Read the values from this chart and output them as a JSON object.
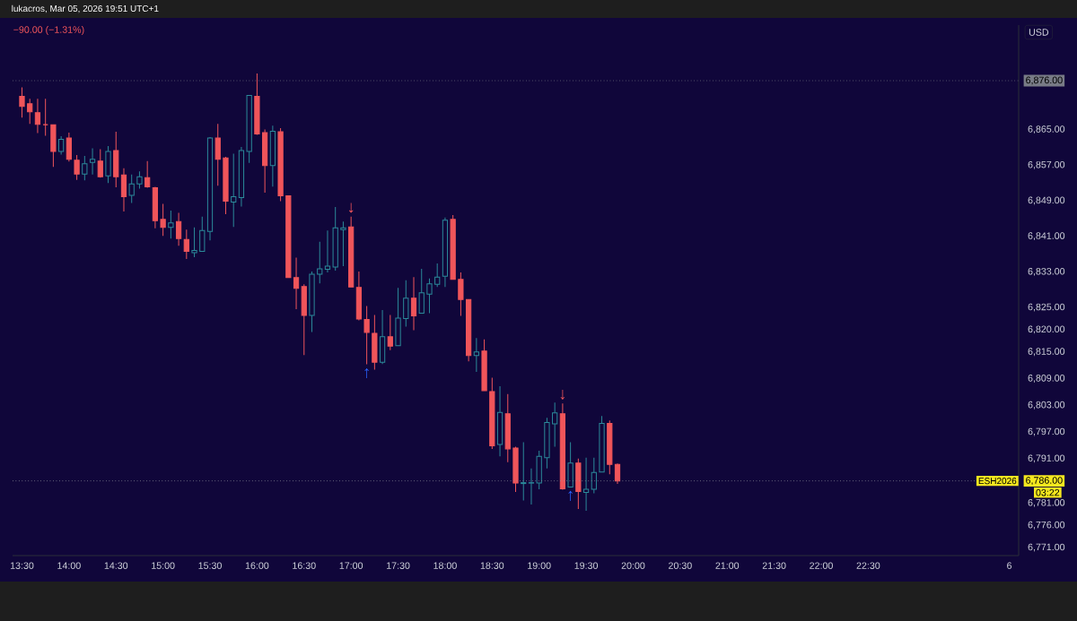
{
  "chart_data": {
    "type": "candlestick",
    "title": "lukacros, Mar 05, 2026 19:51 UTC+1",
    "x": [
      "2026-03-05T13:30",
      "2026-03-05T13:35",
      "2026-03-05T13:40",
      "2026-03-05T13:45",
      "2026-03-05T13:50",
      "2026-03-05T13:55",
      "2026-03-05T14:00",
      "2026-03-05T14:05",
      "2026-03-05T14:10",
      "2026-03-05T14:15",
      "2026-03-05T14:20",
      "2026-03-05T14:25",
      "2026-03-05T14:30",
      "2026-03-05T14:35",
      "2026-03-05T14:40",
      "2026-03-05T14:45",
      "2026-03-05T14:50",
      "2026-03-05T14:55",
      "2026-03-05T15:00",
      "2026-03-05T15:05",
      "2026-03-05T15:10",
      "2026-03-05T15:15",
      "2026-03-05T15:20",
      "2026-03-05T15:25",
      "2026-03-05T15:30",
      "2026-03-05T15:35",
      "2026-03-05T15:40",
      "2026-03-05T15:45",
      "2026-03-05T15:50",
      "2026-03-05T15:55",
      "2026-03-05T16:00",
      "2026-03-05T16:05",
      "2026-03-05T16:10",
      "2026-03-05T16:15",
      "2026-03-05T16:20",
      "2026-03-05T16:25",
      "2026-03-05T16:30",
      "2026-03-05T16:35",
      "2026-03-05T16:40",
      "2026-03-05T16:45",
      "2026-03-05T16:50",
      "2026-03-05T16:55",
      "2026-03-05T17:00",
      "2026-03-05T17:05",
      "2026-03-05T17:10",
      "2026-03-05T17:15",
      "2026-03-05T17:20",
      "2026-03-05T17:25",
      "2026-03-05T17:30",
      "2026-03-05T17:35",
      "2026-03-05T17:40",
      "2026-03-05T17:45",
      "2026-03-05T17:50",
      "2026-03-05T17:55",
      "2026-03-05T18:00",
      "2026-03-05T18:05",
      "2026-03-05T18:10",
      "2026-03-05T18:15",
      "2026-03-05T18:20",
      "2026-03-05T18:25",
      "2026-03-05T18:30",
      "2026-03-05T18:35",
      "2026-03-05T18:40",
      "2026-03-05T18:45",
      "2026-03-05T18:50",
      "2026-03-05T18:55",
      "2026-03-05T19:00",
      "2026-03-05T19:05",
      "2026-03-05T19:10",
      "2026-03-05T19:15",
      "2026-03-05T19:20",
      "2026-03-05T19:25",
      "2026-03-05T19:30",
      "2026-03-05T19:35",
      "2026-03-05T19:40",
      "2026-03-05T19:45",
      "2026-03-05T19:50"
    ],
    "ohlc": [
      [
        6872.5,
        6874.5,
        6867.7,
        6870.2
      ],
      [
        6870.8,
        6871.9,
        6866.3,
        6869.0
      ],
      [
        6868.8,
        6871.9,
        6864.2,
        6866.2
      ],
      [
        6866.1,
        6871.9,
        6863.6,
        6866.1
      ],
      [
        6866.1,
        6866.1,
        6856.6,
        6860.1
      ],
      [
        6860.1,
        6863.5,
        6859.4,
        6862.8
      ],
      [
        6863.1,
        6864.3,
        6857.8,
        6858.3
      ],
      [
        6858.1,
        6859.3,
        6853.7,
        6855.0
      ],
      [
        6855.0,
        6859.1,
        6853.6,
        6857.3
      ],
      [
        6857.6,
        6860.8,
        6854.9,
        6858.3
      ],
      [
        6857.9,
        6860.6,
        6854.2,
        6854.4
      ],
      [
        6854.6,
        6861.3,
        6853.0,
        6860.1
      ],
      [
        6860.3,
        6864.5,
        6852.0,
        6854.4
      ],
      [
        6854.8,
        6856.3,
        6846.6,
        6849.9
      ],
      [
        6850.2,
        6854.9,
        6848.5,
        6852.8
      ],
      [
        6852.8,
        6855.6,
        6851.7,
        6854.4
      ],
      [
        6854.2,
        6857.9,
        6851.9,
        6852.1
      ],
      [
        6851.9,
        6852.1,
        6842.8,
        6844.5
      ],
      [
        6844.8,
        6848.3,
        6841.1,
        6843.0
      ],
      [
        6843.0,
        6846.8,
        6840.5,
        6844.0
      ],
      [
        6844.3,
        6846.3,
        6838.9,
        6840.5
      ],
      [
        6840.3,
        6842.5,
        6835.9,
        6837.6
      ],
      [
        6837.3,
        6843.0,
        6836.3,
        6837.8
      ],
      [
        6837.6,
        6845.4,
        6837.6,
        6842.3
      ],
      [
        6842.1,
        6863.3,
        6840.1,
        6863.1
      ],
      [
        6863.1,
        6866.3,
        6852.4,
        6858.3
      ],
      [
        6858.6,
        6858.9,
        6846.0,
        6848.9
      ],
      [
        6848.7,
        6859.6,
        6843.1,
        6849.9
      ],
      [
        6849.7,
        6861.1,
        6847.7,
        6860.3
      ],
      [
        6860.1,
        6872.8,
        6857.5,
        6872.7
      ],
      [
        6872.5,
        6877.6,
        6863.8,
        6864.0
      ],
      [
        6864.3,
        6865.0,
        6850.8,
        6856.9
      ],
      [
        6856.9,
        6865.9,
        6852.2,
        6864.6
      ],
      [
        6864.5,
        6865.3,
        6848.9,
        6850.1
      ],
      [
        6850.1,
        6850.2,
        6831.7,
        6831.7
      ],
      [
        6831.7,
        6836.2,
        6824.6,
        6829.3
      ],
      [
        6829.7,
        6830.2,
        6814.3,
        6823.2
      ],
      [
        6823.2,
        6833.1,
        6819.5,
        6832.5
      ],
      [
        6832.5,
        6839.8,
        6830.4,
        6833.7
      ],
      [
        6833.6,
        6842.3,
        6832.9,
        6834.3
      ],
      [
        6834.1,
        6847.6,
        6833.3,
        6842.9
      ],
      [
        6842.5,
        6844.3,
        6834.3,
        6842.9
      ],
      [
        6843.1,
        6845.4,
        6829.6,
        6829.6
      ],
      [
        6829.5,
        6833.1,
        6822.1,
        6822.4
      ],
      [
        6822.3,
        6825.3,
        6812.2,
        6819.4
      ],
      [
        6819.2,
        6823.3,
        6811.0,
        6812.7
      ],
      [
        6812.7,
        6824.4,
        6812.3,
        6818.4
      ],
      [
        6818.4,
        6823.3,
        6815.4,
        6816.3
      ],
      [
        6816.4,
        6829.4,
        6816.4,
        6822.6
      ],
      [
        6822.5,
        6831.1,
        6820.7,
        6827.1
      ],
      [
        6827.1,
        6831.8,
        6819.9,
        6823.1
      ],
      [
        6823.7,
        6833.7,
        6823.7,
        6828.3
      ],
      [
        6828.0,
        6831.5,
        6823.7,
        6830.3
      ],
      [
        6830.2,
        6834.9,
        6829.6,
        6831.8
      ],
      [
        6832.0,
        6845.2,
        6829.6,
        6844.6
      ],
      [
        6844.8,
        6845.8,
        6831.3,
        6831.3
      ],
      [
        6831.3,
        6832.9,
        6823.1,
        6826.8
      ],
      [
        6826.8,
        6826.8,
        6812.9,
        6814.2
      ],
      [
        6814.2,
        6818.1,
        6810.5,
        6815.0
      ],
      [
        6815.2,
        6817.8,
        6806.3,
        6806.3
      ],
      [
        6806.1,
        6809.2,
        6793.2,
        6793.9
      ],
      [
        6794.2,
        6807.3,
        6791.5,
        6801.4
      ],
      [
        6801.1,
        6805.5,
        6790.2,
        6793.2
      ],
      [
        6793.4,
        6793.7,
        6783.5,
        6785.5
      ],
      [
        6785.4,
        6794.7,
        6781.6,
        6785.6
      ],
      [
        6785.5,
        6788.8,
        6780.7,
        6785.6
      ],
      [
        6785.5,
        6792.8,
        6784.1,
        6791.5
      ],
      [
        6791.2,
        6800.2,
        6788.8,
        6799.1
      ],
      [
        6798.8,
        6803.6,
        6793.7,
        6801.3
      ],
      [
        6801.1,
        6803.4,
        6784.0,
        6784.2
      ],
      [
        6784.6,
        6794.7,
        6784.6,
        6790.0
      ],
      [
        6790.0,
        6791.0,
        6779.7,
        6783.6
      ],
      [
        6783.4,
        6791.2,
        6779.3,
        6784.1
      ],
      [
        6784.1,
        6791.2,
        6783.2,
        6787.9
      ],
      [
        6788.0,
        6800.6,
        6788.0,
        6798.9
      ],
      [
        6798.9,
        6799.6,
        6787.5,
        6789.7
      ],
      [
        6789.7,
        6789.9,
        6785.3,
        6786.0
      ]
    ],
    "colors": [
      "#f0555a",
      "#f0555a",
      "#f0555a",
      "#f0555a",
      "#f0555a",
      "#2b8a9a",
      "#f0555a",
      "#f0555a",
      "#2b8a9a",
      "#2b8a9a",
      "#f0555a",
      "#2b8a9a",
      "#f0555a",
      "#f0555a",
      "#2b8a9a",
      "#2b8a9a",
      "#f0555a",
      "#f0555a",
      "#f0555a",
      "#2b8a9a",
      "#f0555a",
      "#f0555a",
      "#2b8a9a",
      "#2b8a9a",
      "#2b8a9a",
      "#f0555a",
      "#f0555a",
      "#2b8a9a",
      "#2b8a9a",
      "#2b8a9a",
      "#f0555a",
      "#f0555a",
      "#2b8a9a",
      "#f0555a",
      "#f0555a",
      "#f0555a",
      "#f0555a",
      "#2b8a9a",
      "#2b8a9a",
      "#2b8a9a",
      "#2b8a9a",
      "#2b8a9a",
      "#f0555a",
      "#f0555a",
      "#f0555a",
      "#f0555a",
      "#2b8a9a",
      "#f0555a",
      "#2b8a9a",
      "#2b8a9a",
      "#f0555a",
      "#2b8a9a",
      "#2b8a9a",
      "#2b8a9a",
      "#2b8a9a",
      "#f0555a",
      "#f0555a",
      "#f0555a",
      "#2b8a9a",
      "#f0555a",
      "#f0555a",
      "#2b8a9a",
      "#f0555a",
      "#f0555a",
      "#2b8a9a",
      "#2b8a9a",
      "#2b8a9a",
      "#2b8a9a",
      "#2b8a9a",
      "#f0555a",
      "#2b8a9a",
      "#f0555a",
      "#2b8a9a",
      "#2b8a9a",
      "#2b8a9a",
      "#f0555a",
      "#f0555a"
    ],
    "xlim": [
      "2026-03-05T13:24",
      "2026-03-06T00:06"
    ],
    "xticks": [
      {
        "value": "2026-03-05T13:30",
        "label": "13:30"
      },
      {
        "value": "2026-03-05T14:00",
        "label": "14:00"
      },
      {
        "value": "2026-03-05T14:30",
        "label": "14:30"
      },
      {
        "value": "2026-03-05T15:00",
        "label": "15:00"
      },
      {
        "value": "2026-03-05T15:30",
        "label": "15:30"
      },
      {
        "value": "2026-03-05T16:00",
        "label": "16:00"
      },
      {
        "value": "2026-03-05T16:30",
        "label": "16:30"
      },
      {
        "value": "2026-03-05T17:00",
        "label": "17:00"
      },
      {
        "value": "2026-03-05T17:30",
        "label": "17:30"
      },
      {
        "value": "2026-03-05T18:00",
        "label": "18:00"
      },
      {
        "value": "2026-03-05T18:30",
        "label": "18:30"
      },
      {
        "value": "2026-03-05T19:00",
        "label": "19:00"
      },
      {
        "value": "2026-03-05T19:30",
        "label": "19:30"
      },
      {
        "value": "2026-03-05T20:00",
        "label": "20:00"
      },
      {
        "value": "2026-03-05T20:30",
        "label": "20:30"
      },
      {
        "value": "2026-03-05T21:00",
        "label": "21:00"
      },
      {
        "value": "2026-03-05T21:30",
        "label": "21:30"
      },
      {
        "value": "2026-03-05T22:00",
        "label": "22:00"
      },
      {
        "value": "2026-03-05T22:30",
        "label": "22:30"
      },
      {
        "value": "2026-03-06T00:00",
        "label": "6"
      }
    ],
    "ylim": [
      6769.2,
      6888.5
    ],
    "yticks": [
      {
        "value": 6771,
        "label": "6,771.00"
      },
      {
        "value": 6776,
        "label": "6,776.00"
      },
      {
        "value": 6781,
        "label": "6,781.00"
      },
      {
        "value": 6786,
        "label": "6,786.00"
      },
      {
        "value": 6791,
        "label": "6,791.00"
      },
      {
        "value": 6797,
        "label": "6,797.00"
      },
      {
        "value": 6803,
        "label": "6,803.00"
      },
      {
        "value": 6809,
        "label": "6,809.00"
      },
      {
        "value": 6815,
        "label": "6,815.00"
      },
      {
        "value": 6820,
        "label": "6,820.00"
      },
      {
        "value": 6825,
        "label": "6,825.00"
      },
      {
        "value": 6833,
        "label": "6,833.00"
      },
      {
        "value": 6841,
        "label": "6,841.00"
      },
      {
        "value": 6849,
        "label": "6,849.00"
      },
      {
        "value": 6857,
        "label": "6,857.00"
      },
      {
        "value": 6865,
        "label": "6,865.00"
      },
      {
        "value": 6876,
        "label": "6,876.00"
      }
    ],
    "ref_lines": [
      {
        "axis": "y",
        "value": 6876,
        "color": "#787b86"
      },
      {
        "axis": "y",
        "value": 6786,
        "label": "ESH2026",
        "color": "#9598a1"
      }
    ],
    "annotations": [
      "−90.00 (−1.31%)",
      "USD",
      "03:22",
      {
        "text": "↓",
        "x": "2026-03-05T17:00",
        "y": 6845.4
      },
      {
        "text": "↑",
        "x": "2026-03-05T17:10",
        "y": 6812.2
      },
      {
        "text": "↓",
        "x": "2026-03-05T19:15",
        "y": 6803.4
      },
      {
        "text": "↑",
        "x": "2026-03-05T19:20",
        "y": 6784.6
      }
    ]
  }
}
